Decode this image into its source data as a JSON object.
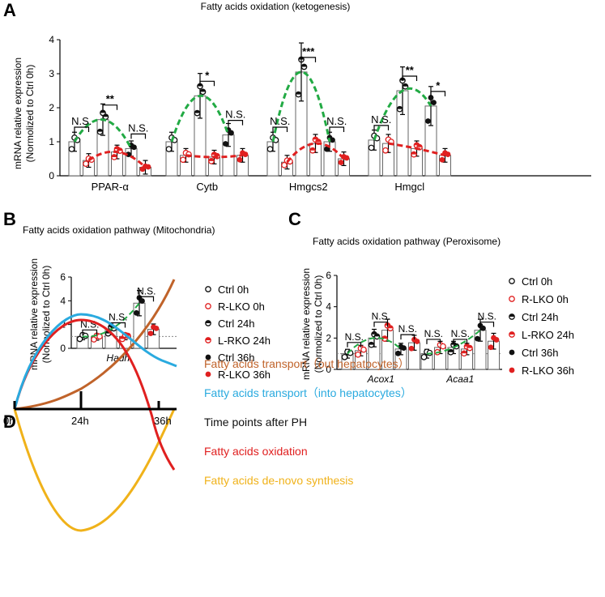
{
  "panelA": {
    "letter": "A",
    "title": "Fatty acids oxidation  (ketogenesis)",
    "ylabel1": "mRNA relative expression",
    "ylabel2": "(Normolized to Ctrl 0h)"
  },
  "panelB": {
    "letter": "B",
    "title": "Fatty acids oxidation pathway (Mitochondria)",
    "ylabel1": "mRNA relative expression",
    "ylabel2": "(Normolized to Ctrl 0h)"
  },
  "panelC": {
    "letter": "C",
    "title": "Fatty acids oxidation pathway (Peroxisome)",
    "ylabel1": "mRNA relative expression",
    "ylabel2": "(Normolized to Ctrl 0h)"
  },
  "legendB": [
    "Ctrl 0h",
    "R-LKO 0h",
    "Ctrl 24h",
    "L-RKO 24h",
    "Ctrl 36h",
    "R-LKO 36h"
  ],
  "legendC": [
    "Ctrl 0h",
    "R-LKO 0h",
    "Ctrl 24h",
    "L-RKO 24h",
    "Ctrl 36h",
    "R-LKO 36h"
  ],
  "panelD": {
    "letter": "D",
    "labels": [
      "0h",
      "24h",
      "36h"
    ],
    "legend": [
      {
        "text": "Fatty acids transport（out hepatocytes）",
        "color": "#c0632a"
      },
      {
        "text": "Fatty acids transport（into hepatocytes）",
        "color": "#2aaadf"
      },
      {
        "text": "Time points after PH",
        "color": "#111111"
      },
      {
        "text": "Fatty acids oxidation",
        "color": "#e02020"
      },
      {
        "text": "Fatty acids de-novo synthesis",
        "color": "#f0b21a"
      }
    ]
  },
  "colors": {
    "ctrl": "#111111",
    "lko": "#e02020",
    "ctrl_trend": "#22aa44",
    "lko_trend": "#e02020"
  },
  "chart_data": [
    {
      "type": "bar",
      "title": "Fatty acids oxidation  (ketogenesis)",
      "ylabel": "mRNA relative expression (Normolized to Ctrl 0h)",
      "ylim": [
        0,
        4
      ],
      "yticks": [
        "0",
        "1",
        "2",
        "3",
        "4"
      ],
      "categories": [
        "PPAR-α",
        "Cytb",
        "Hmgcs2",
        "Hmgcl"
      ],
      "groups": [
        "Ctrl 0h",
        "R-LKO 0h",
        "Ctrl 24h",
        "L-RKO 24h",
        "Ctrl 36h",
        "R-LKO 36h"
      ],
      "values": [
        [
          1.0,
          0.45,
          1.65,
          0.7,
          0.8,
          0.25
        ],
        [
          1.0,
          0.6,
          2.35,
          0.55,
          1.2,
          0.6
        ],
        [
          1.0,
          0.4,
          3.05,
          0.95,
          1.0,
          0.5
        ],
        [
          1.05,
          0.95,
          2.5,
          0.8,
          2.05,
          0.6
        ]
      ],
      "annotations": [
        [
          "N.S.",
          "**",
          "N.S."
        ],
        [
          "*",
          "N.S."
        ],
        [
          "N.S.",
          "***",
          "N.S."
        ],
        [
          "N.S.",
          "**",
          "*"
        ]
      ]
    },
    {
      "type": "bar",
      "title": "Fatty acids oxidation pathway (Mitochondria)",
      "ylabel": "mRNA relative expression (Normolized to Ctrl 0h)",
      "ylim": [
        0,
        6
      ],
      "yticks": [
        "0",
        "2",
        "4",
        "6"
      ],
      "categories": [
        "Hadh"
      ],
      "groups": [
        "Ctrl 0h",
        "R-LKO 0h",
        "Ctrl 24h",
        "L-RKO 24h",
        "Ctrl 36h",
        "R-LKO 36h"
      ],
      "values": [
        [
          1.0,
          0.95,
          1.6,
          1.0,
          3.8,
          1.6
        ]
      ],
      "annotations": [
        [
          "N.S.",
          "N.S.",
          "N.S."
        ]
      ]
    },
    {
      "type": "bar",
      "title": "Fatty acids oxidation pathway (Peroxisome)",
      "ylabel": "mRNA relative expression (Normolized to Ctrl 0h)",
      "ylim": [
        0,
        6
      ],
      "yticks": [
        "0",
        "2",
        "4",
        "6"
      ],
      "categories": [
        "Acox1",
        "Acaa1"
      ],
      "groups": [
        "Ctrl 0h",
        "R-LKO 0h",
        "Ctrl 24h",
        "L-RKO 24h",
        "Ctrl 36h",
        "R-LKO 36h"
      ],
      "values": [
        [
          1.0,
          1.2,
          2.0,
          2.5,
          1.3,
          1.7
        ],
        [
          1.0,
          1.4,
          1.4,
          1.3,
          2.5,
          1.8
        ]
      ],
      "annotations": [
        [
          "N.S.",
          "N.S.",
          "N.S."
        ],
        [
          "N.S.",
          "N.S.",
          "N.S."
        ]
      ]
    }
  ]
}
